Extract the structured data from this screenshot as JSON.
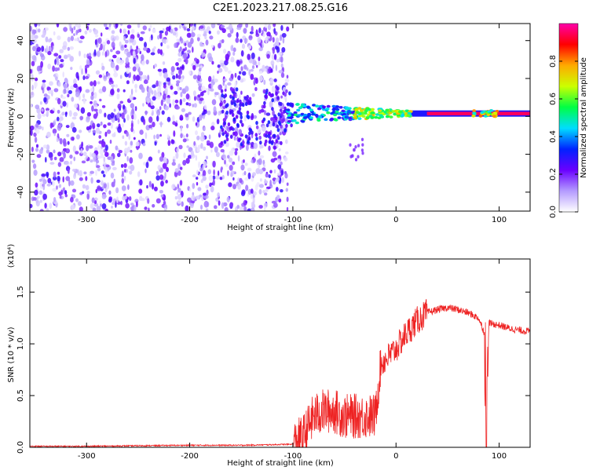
{
  "title": "C2E1.2023.217.08.25.G16",
  "chart_data": [
    {
      "type": "heatmap",
      "xlabel": "Height of straight line (km)",
      "ylabel": "Frequency (Hz)",
      "xlim": [
        -355,
        130
      ],
      "ylim": [
        -50,
        49
      ],
      "xticks": [
        -300,
        -200,
        -100,
        0,
        100
      ],
      "yticks": [
        -40,
        -20,
        0,
        20,
        40
      ],
      "grid": false,
      "colorbar": {
        "label": "Normalized spectral amplitude",
        "range": [
          0,
          1
        ],
        "ticks": [
          0.0,
          0.2,
          0.4,
          0.6,
          0.8
        ],
        "colormap": [
          "#ffffff",
          "#b49bff",
          "#6a00ff",
          "#0022ff",
          "#00ddff",
          "#00ff44",
          "#ccff00",
          "#ffaa00",
          "#ff0000",
          "#ff00aa"
        ]
      },
      "features": {
        "noise_region_x": [
          -355,
          -105
        ],
        "noise_amplitude": 0.15,
        "signal_band_x": [
          -105,
          130
        ],
        "signal_band_center_hz": 1.5,
        "signal_amplitude_at_start": 0.4,
        "signal_amplitude_at_end": 0.95,
        "tail_feature": {
          "x": [
            -45,
            -32
          ],
          "y": [
            -23,
            -12
          ]
        }
      }
    },
    {
      "type": "line",
      "xlabel": "Height of straight line (km)",
      "ylabel": "SNR (10 * v/v)",
      "y_multiplier": "(x10⁴)",
      "xlim": [
        -355,
        130
      ],
      "ylim": [
        0,
        1.82
      ],
      "xticks": [
        -300,
        -200,
        -100,
        0,
        100
      ],
      "yticks": [
        0.0,
        0.5,
        1.0,
        1.5
      ],
      "line_color": "#ee2222",
      "series": [
        {
          "name": "",
          "x": [
            -355,
            -300,
            -250,
            -200,
            -150,
            -120,
            -100,
            -90,
            -80,
            -70,
            -60,
            -50,
            -40,
            -30,
            -20,
            -15,
            -10,
            0,
            10,
            20,
            30,
            40,
            50,
            60,
            70,
            80,
            86,
            88,
            90,
            100,
            110,
            120,
            130
          ],
          "y": [
            0.01,
            0.01,
            0.015,
            0.02,
            0.02,
            0.025,
            0.03,
            0.1,
            0.3,
            0.35,
            0.35,
            0.3,
            0.3,
            0.3,
            0.3,
            0.8,
            0.85,
            0.95,
            1.1,
            1.22,
            1.3,
            1.33,
            1.35,
            1.33,
            1.3,
            1.25,
            1.1,
            0.15,
            1.2,
            1.18,
            1.15,
            1.13,
            1.12
          ]
        }
      ]
    }
  ]
}
